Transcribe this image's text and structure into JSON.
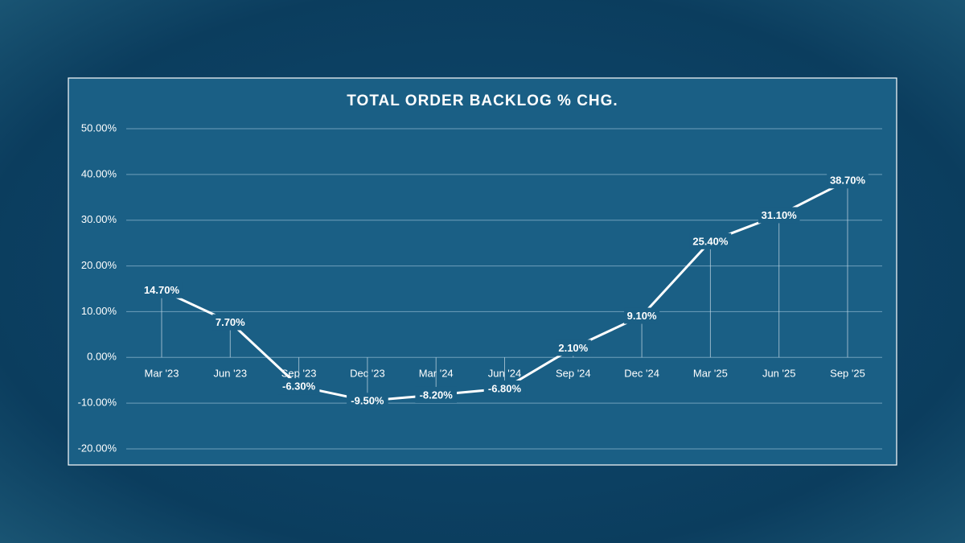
{
  "chart_data": {
    "type": "line",
    "title": "TOTAL ORDER BACKLOG % CHG.",
    "categories": [
      "Mar '23",
      "Jun '23",
      "Sep '23",
      "Dec '23",
      "Mar '24",
      "Jun '24",
      "Sep '24",
      "Dec '24",
      "Mar '25",
      "Jun '25",
      "Sep '25"
    ],
    "series": [
      {
        "name": "Total Order Backlog % Chg.",
        "color": "#ffffff",
        "values": [
          14.7,
          7.7,
          -6.3,
          -9.5,
          -8.2,
          -6.8,
          2.1,
          9.1,
          25.4,
          31.1,
          38.7
        ],
        "value_labels": [
          "14.70%",
          "7.70%",
          "-6.30%",
          "-9.50%",
          "-8.20%",
          "-6.80%",
          "2.10%",
          "9.10%",
          "25.40%",
          "31.10%",
          "38.70%"
        ]
      }
    ],
    "ylim": [
      -20,
      50
    ],
    "yticks": [
      {
        "value": -20,
        "label": "-20.00%"
      },
      {
        "value": -10,
        "label": "-10.00%"
      },
      {
        "value": 0,
        "label": "0.00%"
      },
      {
        "value": 10,
        "label": "10.00%"
      },
      {
        "value": 20,
        "label": "20.00%"
      },
      {
        "value": 30,
        "label": "30.00%"
      },
      {
        "value": 40,
        "label": "40.00%"
      },
      {
        "value": 50,
        "label": "50.00%"
      }
    ],
    "grid": true
  }
}
